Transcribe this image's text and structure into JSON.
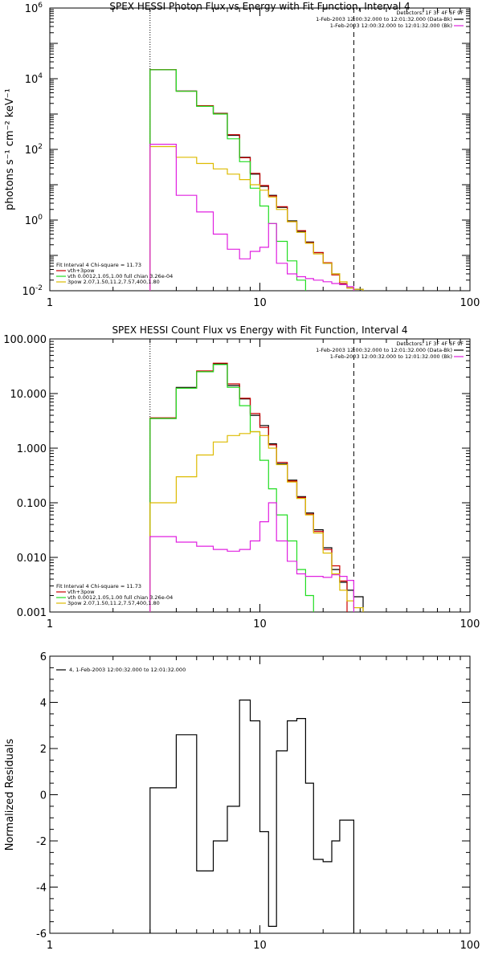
{
  "chart_data": [
    {
      "type": "line",
      "title": "SPEX HESSI Photon Flux vs Energy with Fit Function, Interval 4",
      "ylabel": "photons s⁻¹ cm⁻² keV⁻¹",
      "xlabel": "",
      "x_scale": "log",
      "y_scale": "log",
      "xlim": [
        1,
        100
      ],
      "ylim": [
        0.01,
        1000000
      ],
      "x_tick_labels": [
        "1",
        "10",
        "100"
      ],
      "y_ticks": [
        {
          "value": 0.01,
          "base": "10",
          "exp": "-2"
        },
        {
          "value": 1,
          "base": "10",
          "exp": "0"
        },
        {
          "value": 100,
          "base": "10",
          "exp": "2"
        },
        {
          "value": 10000,
          "base": "10",
          "exp": "4"
        },
        {
          "value": 1000000,
          "base": "10",
          "exp": "6"
        }
      ],
      "vlines": [
        {
          "x": 3.0,
          "style": "dotted"
        },
        {
          "x": 28.0,
          "style": "dashed"
        }
      ],
      "top_legend": {
        "heading": "Detectors: 1F 3F 4F 6F 9F",
        "entries": [
          {
            "text": "1-Feb-2003 12:00:32.000 to 12:01:32.000 (Data-Bk)",
            "color": "#000000"
          },
          {
            "text": "1-Feb-2003 12:00:32.000 to 12:01:32.000 (Bk)",
            "color": "#e020e0"
          }
        ]
      },
      "fit_legend": {
        "heading": "Fit Interval  4    Chi-square = 11.73",
        "entries": [
          {
            "text": "vth+3pow",
            "color": "#cc0000"
          },
          {
            "text": "vth 0.0012,1.05,1.00  full chian 3.26e-04",
            "color": "#22dd22"
          },
          {
            "text": "3pow 2.07,1.50,11.2,7.57,400,1.80",
            "color": "#ddbb00"
          }
        ]
      },
      "edges": [
        3.0,
        4.0,
        5.0,
        6.0,
        7.0,
        8.0,
        9.0,
        10.0,
        11.0,
        12.0,
        13.5,
        15.0,
        16.5,
        18.0,
        20.0,
        22.0,
        24.0,
        26.0,
        28.0,
        31.0
      ],
      "series": [
        {
          "color": "#000000",
          "values": [
            18000,
            4500,
            1700,
            1050,
            250,
            60,
            20,
            9.0,
            5.0,
            2.3,
            0.95,
            0.48,
            0.24,
            0.12,
            0.06,
            0.03,
            0.015,
            0.012,
            0.011
          ]
        },
        {
          "color": "#cc0000",
          "values": [
            18200,
            4450,
            1720,
            1040,
            260,
            58,
            21,
            9.5,
            4.8,
            2.4,
            0.9,
            0.5,
            0.23,
            0.12,
            0.062,
            0.028,
            0.016,
            0.012,
            null
          ]
        },
        {
          "color": "#22dd22",
          "values": [
            18000,
            4400,
            1650,
            1000,
            200,
            45,
            8.0,
            2.5,
            0.8,
            0.25,
            0.07,
            0.02,
            null,
            null,
            null,
            null,
            null,
            null,
            null
          ]
        },
        {
          "color": "#ddbb00",
          "values": [
            120,
            60,
            40,
            28,
            20,
            14,
            10,
            7.0,
            4.5,
            2.0,
            0.9,
            0.45,
            0.22,
            0.11,
            0.06,
            0.03,
            0.018,
            0.012,
            0.011
          ]
        },
        {
          "color": "#e020e0",
          "values": [
            140,
            5.0,
            1.7,
            0.4,
            0.15,
            0.08,
            0.13,
            0.17,
            0.8,
            0.06,
            0.03,
            0.025,
            0.022,
            0.02,
            0.018,
            0.016,
            0.015,
            0.013,
            null
          ]
        }
      ]
    },
    {
      "type": "line",
      "title": "SPEX HESSI Count Flux vs Energy with Fit Function, Interval 4",
      "ylabel": "",
      "xlabel": "",
      "x_scale": "log",
      "y_scale": "log",
      "xlim": [
        1,
        100
      ],
      "ylim": [
        0.001,
        100
      ],
      "x_tick_labels": [
        "1",
        "10",
        "100"
      ],
      "y_ticks": [
        {
          "value": 0.001,
          "label": "0.001"
        },
        {
          "value": 0.01,
          "label": "0.010"
        },
        {
          "value": 0.1,
          "label": "0.100"
        },
        {
          "value": 1,
          "label": "1.000"
        },
        {
          "value": 10,
          "label": "10.000"
        },
        {
          "value": 100,
          "label": "100.000"
        }
      ],
      "vlines": [
        {
          "x": 3.0,
          "style": "dotted"
        },
        {
          "x": 28.0,
          "style": "dashed"
        }
      ],
      "top_legend": {
        "heading": "Detectors: 1F 3F 4F 6F 9F",
        "entries": [
          {
            "text": "1-Feb-2003 12:00:32.000 to 12:01:32.000 (Data-Bk)",
            "color": "#000000"
          },
          {
            "text": "1-Feb-2003 12:00:32.000 to 12:01:32.000 (Bk)",
            "color": "#e020e0"
          }
        ]
      },
      "fit_legend": {
        "heading": "Fit Interval  4    Chi-square = 11.73",
        "entries": [
          {
            "text": "vth+3pow",
            "color": "#cc0000"
          },
          {
            "text": "vth 0.0012,1.05,1.00  full chian 3.26e-04",
            "color": "#22dd22"
          },
          {
            "text": "3pow 2.07,1.50,11.2,7.57,400,1.80",
            "color": "#ddbb00"
          }
        ]
      },
      "edges": [
        3.0,
        4.0,
        5.0,
        6.0,
        7.0,
        8.0,
        9.0,
        10.0,
        11.0,
        12.0,
        13.5,
        15.0,
        16.5,
        18.0,
        20.0,
        22.0,
        24.0,
        26.0,
        28.0,
        31.0
      ],
      "series": [
        {
          "color": "#000000",
          "values": [
            3.5,
            13.0,
            25.0,
            35.0,
            14.0,
            8.0,
            4.0,
            2.6,
            1.2,
            0.52,
            0.26,
            0.13,
            0.065,
            0.032,
            0.015,
            0.006,
            0.0035,
            0.0025,
            0.0019
          ]
        },
        {
          "color": "#cc0000",
          "values": [
            3.6,
            12.5,
            26.0,
            36.0,
            15.0,
            8.2,
            4.3,
            2.4,
            1.15,
            0.55,
            0.25,
            0.125,
            0.062,
            0.03,
            0.014,
            0.007,
            0.0037,
            null,
            null
          ]
        },
        {
          "color": "#22dd22",
          "values": [
            3.5,
            12.5,
            25.0,
            34.0,
            13.0,
            6.0,
            2.0,
            0.6,
            0.18,
            0.06,
            0.02,
            0.006,
            0.002,
            null,
            null,
            null,
            null,
            null,
            null
          ]
        },
        {
          "color": "#ddbb00",
          "values": [
            0.1,
            0.3,
            0.75,
            1.3,
            1.7,
            1.85,
            2.0,
            1.7,
            1.0,
            0.5,
            0.24,
            0.12,
            0.06,
            0.028,
            0.012,
            0.005,
            0.0025,
            0.0016,
            0.0012
          ]
        },
        {
          "color": "#e020e0",
          "values": [
            0.024,
            0.019,
            0.016,
            0.014,
            0.013,
            0.014,
            0.02,
            0.045,
            0.1,
            0.02,
            0.0085,
            0.005,
            0.0045,
            0.0045,
            0.0043,
            0.0048,
            0.0045,
            0.0038,
            null
          ]
        }
      ]
    },
    {
      "type": "line",
      "title": "",
      "ylabel": "Normalized Residuals",
      "xlabel": "",
      "x_scale": "log",
      "y_scale": "linear",
      "xlim": [
        1,
        100
      ],
      "ylim": [
        -6,
        6
      ],
      "x_tick_labels": [
        "1",
        "10",
        "100"
      ],
      "y_ticks": [
        {
          "value": -6,
          "label": "-6"
        },
        {
          "value": -4,
          "label": "-4"
        },
        {
          "value": -2,
          "label": "-2"
        },
        {
          "value": 0,
          "label": "0"
        },
        {
          "value": 2,
          "label": "2"
        },
        {
          "value": 4,
          "label": "4"
        },
        {
          "value": 6,
          "label": "6"
        }
      ],
      "vlines": [],
      "top_legend": {
        "heading": "",
        "entries": [
          {
            "text": "4, 1-Feb-2003 12:00:32.000 to 12:01:32.000",
            "color": "#000000"
          }
        ]
      },
      "edges": [
        3.0,
        4.0,
        5.0,
        6.0,
        7.0,
        8.0,
        9.0,
        10.0,
        11.0,
        12.0,
        13.5,
        15.0,
        16.5,
        18.0,
        20.0,
        22.0,
        24.0,
        26.0,
        28.0
      ],
      "series": [
        {
          "color": "#000000",
          "drop_ends_to_min": true,
          "values": [
            0.3,
            2.6,
            -3.3,
            -2.0,
            -0.5,
            4.1,
            3.2,
            -1.6,
            -5.7,
            1.9,
            3.2,
            3.3,
            0.5,
            -2.8,
            -2.9,
            -2.0,
            -1.1,
            -1.1
          ]
        }
      ]
    }
  ]
}
